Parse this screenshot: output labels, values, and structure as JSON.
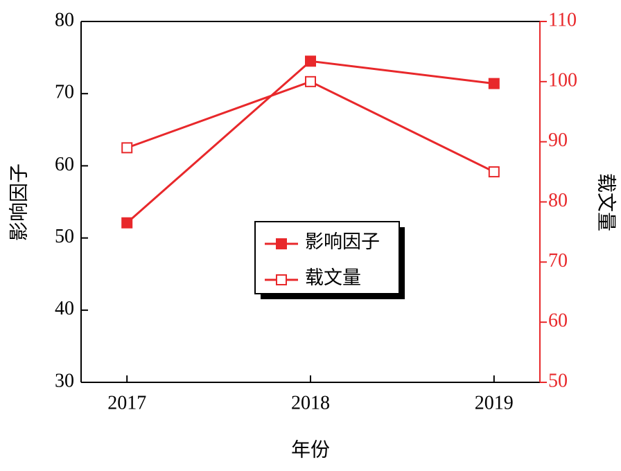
{
  "chart_data": {
    "type": "line",
    "x_label": "年份",
    "y_label": "影响因子",
    "y2_label": "载文量",
    "x": [
      2017,
      2018,
      2019
    ],
    "xlim": [
      2016.75,
      2019.25
    ],
    "xticks": [
      2017,
      2018,
      2019
    ],
    "ylim": [
      30,
      80
    ],
    "yticks": [
      30,
      40,
      50,
      60,
      70,
      80
    ],
    "y2lim": [
      50,
      110
    ],
    "y2ticks": [
      50,
      60,
      70,
      80,
      90,
      100,
      110
    ],
    "y2_color": "#e8282b",
    "legend": "center",
    "series": [
      {
        "name": "影响因子",
        "color": "#e8282b",
        "marker": "filled-square",
        "values": [
          52.1,
          74.5,
          71.4
        ]
      },
      {
        "name": "载文量",
        "color": "#e8282b",
        "marker": "open-square",
        "axis": "y2",
        "values": [
          89,
          100,
          85
        ]
      }
    ]
  }
}
